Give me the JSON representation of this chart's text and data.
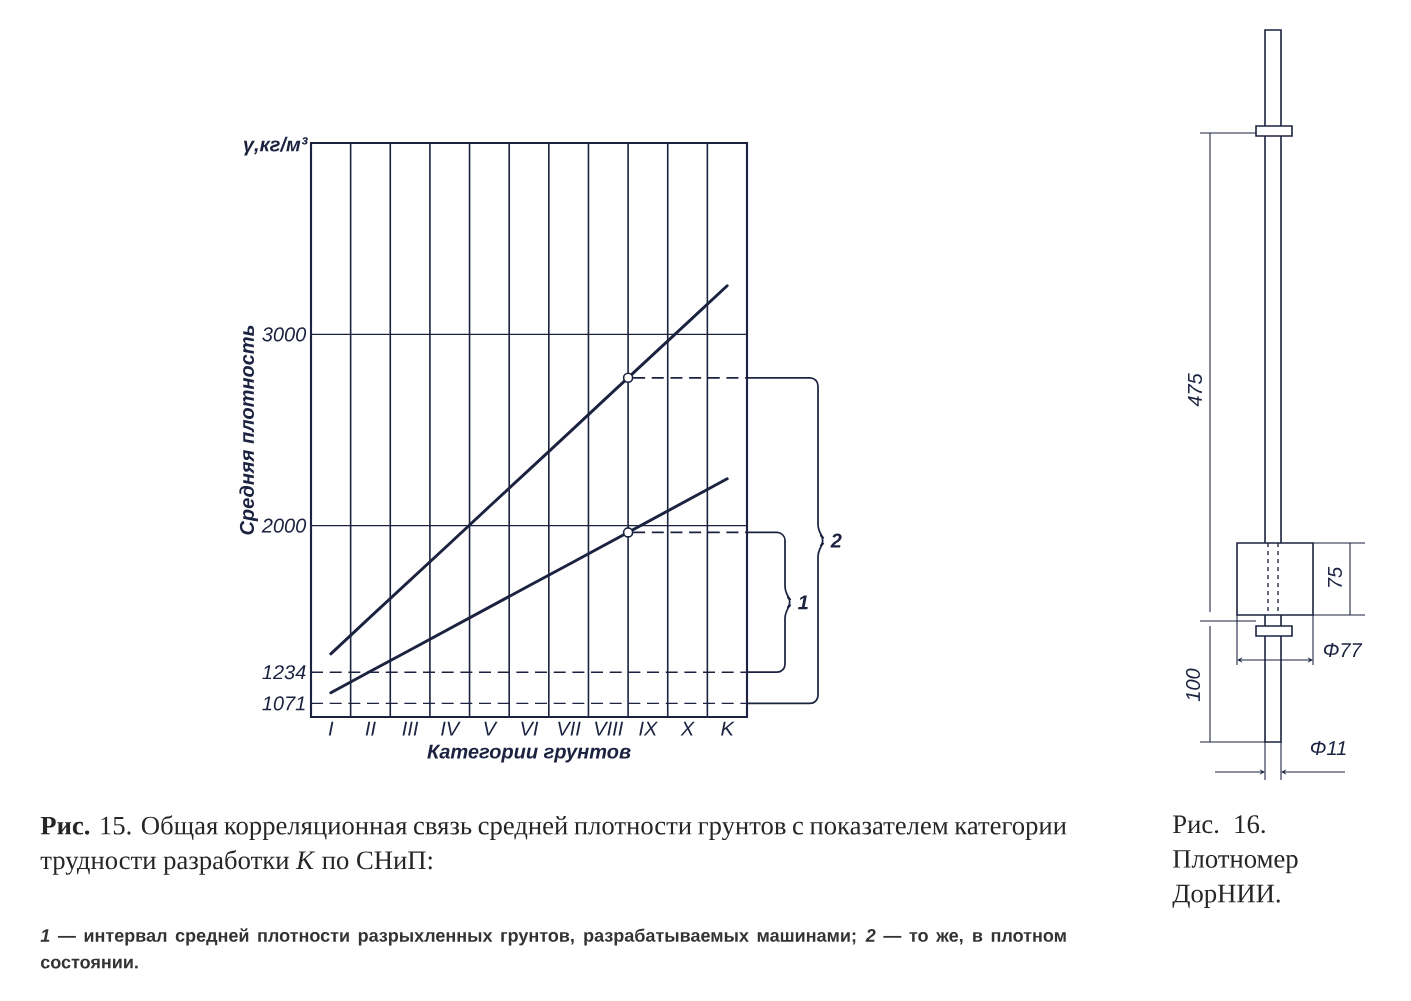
{
  "chart_data": {
    "type": "line",
    "xlabel": "Категории грунтов",
    "ylabel": "Средняя плотность",
    "categories": [
      "I",
      "II",
      "III",
      "IV",
      "V",
      "VI",
      "VII",
      "VIII",
      "IX",
      "X",
      "K"
    ],
    "ylim": [
      1000,
      4000
    ],
    "yticks": [
      1071,
      1234,
      2000,
      3000
    ],
    "grid": "x",
    "series": [
      {
        "color": "#1c2340",
        "values": [
          1330,
          1523,
          1715,
          1907,
          2100,
          2292,
          2484,
          2677,
          2869,
          3061,
          3254
        ]
      },
      {
        "color": "#1c2340",
        "values": [
          1127,
          1239,
          1350,
          1462,
          1574,
          1686,
          1797,
          1909,
          2021,
          2133,
          2245
        ]
      }
    ],
    "ref_lines": [
      {
        "axis": "y",
        "value": 2000
      },
      {
        "axis": "y",
        "value": 3000
      },
      {
        "axis": "y",
        "value": 1234,
        "line_style": "dashed"
      },
      {
        "axis": "y",
        "value": 1071,
        "line_style": "dashed"
      }
    ],
    "annotations": [
      "γ,кг/м³",
      "**Рис.** 15. Общая корреляционная связь средней плотности грунтов с показателем категории трудности разработки *K* по СНиП:",
      "*1* — интервал средней плотности разрыхленных грунтов, разрабатываемых машинами; *2* — то же, в плотном состоянии.",
      "1",
      "2",
      "Рис. 16. Плотномер ДорНИИ.",
      "475",
      "75",
      "100",
      "Φ77",
      "Φ11"
    ]
  }
}
